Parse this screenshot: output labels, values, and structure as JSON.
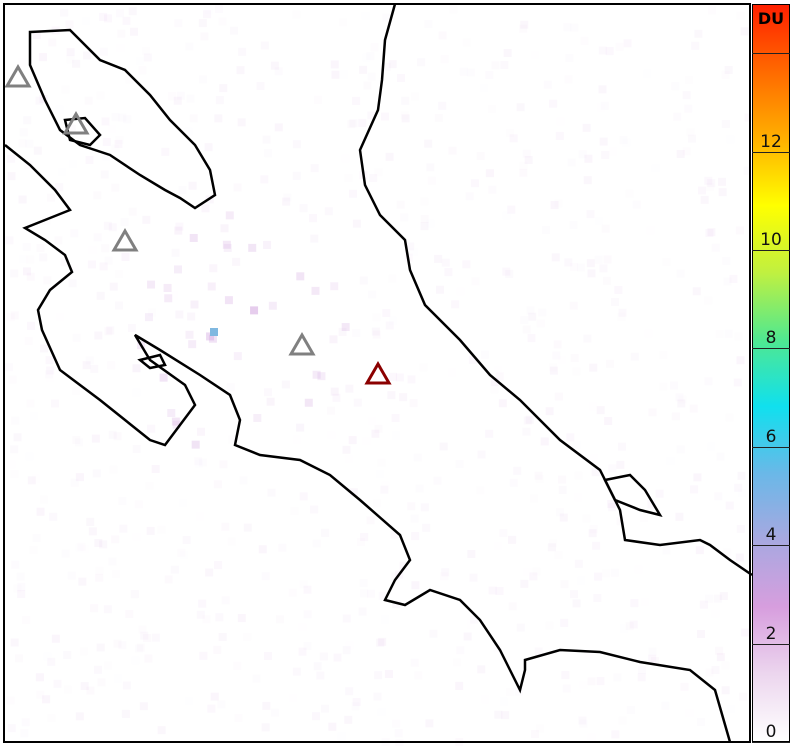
{
  "colorbar": {
    "unit": "DU",
    "range": [
      0,
      15
    ],
    "ticks": [
      "0",
      "2",
      "4",
      "6",
      "8",
      "10",
      "12"
    ],
    "colors": [
      "#ffffff",
      "#ecd6ee",
      "#d79ede",
      "#a8a8e0",
      "#6ab8e8",
      "#10e0ee",
      "#50e890",
      "#c0f040",
      "#ffff00",
      "#ffb000",
      "#ff6a00",
      "#ff2000"
    ]
  },
  "markers": [
    {
      "type": "volcano",
      "color": "#808080"
    },
    {
      "type": "volcano",
      "color": "#808080"
    },
    {
      "type": "volcano",
      "color": "#808080"
    },
    {
      "type": "volcano",
      "color": "#808080"
    },
    {
      "type": "volcano-active",
      "color": "#8b0000"
    }
  ],
  "so2_max_du": 5
}
